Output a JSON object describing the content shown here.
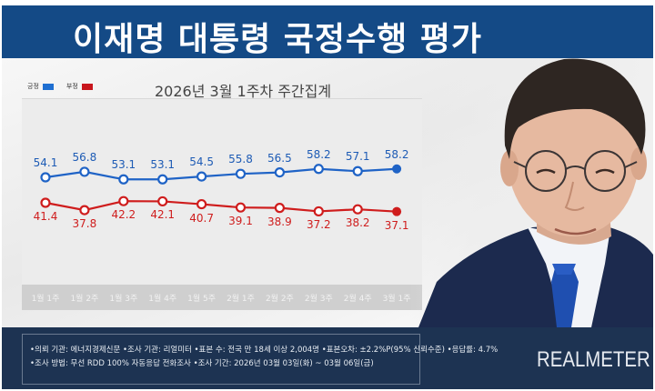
{
  "header": {
    "title": "이재명 대통령 국정수행 평가"
  },
  "legend": {
    "items": [
      {
        "label": "긍정",
        "color": "#1f6fd1"
      },
      {
        "label": "부정",
        "color": "#c8161d"
      }
    ]
  },
  "subtitle": "2026년 3월 1주차 주간집계",
  "chart_data": {
    "type": "line",
    "title": "이재명 대통령 국정수행 평가",
    "subtitle": "2026년 3월 1주차 주간집계",
    "categories": [
      "1월 1주",
      "1월 2주",
      "1월 3주",
      "1월 4주",
      "1월 5주",
      "2월 1주",
      "2월 2주",
      "2월 3주",
      "2월 4주",
      "3월 1주"
    ],
    "series": [
      {
        "name": "긍정",
        "color": "#1f6fd1",
        "values": [
          54.1,
          56.8,
          53.1,
          53.1,
          54.5,
          55.8,
          56.5,
          58.2,
          57.1,
          58.2
        ]
      },
      {
        "name": "부정",
        "color": "#c8161d",
        "values": [
          41.4,
          37.8,
          42.2,
          42.1,
          40.7,
          39.1,
          38.9,
          37.2,
          38.2,
          37.1
        ]
      }
    ],
    "xlabel": "",
    "ylabel": "",
    "grid": false,
    "legend_position": "top-left"
  },
  "footer": {
    "line1": "•의뢰 기관: 에너지경제신문 •조사 기관: 리얼미터 •표본 수: 전국 만 18세 이상 2,004명 •표본오차: ±2.2%P(95% 신뢰수준) •응답률: 4.7%",
    "line2": "•조사 방법: 무선 RDD 100% 자동응답 전화조사 •조사 기간: 2026년 03월 03일(화) ~ 03월 06일(금)"
  },
  "brand": "REALMETER"
}
